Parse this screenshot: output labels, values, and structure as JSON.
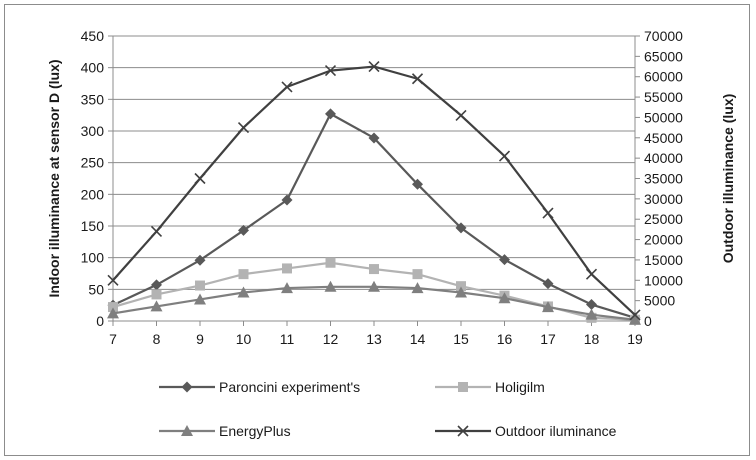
{
  "chart_data": {
    "type": "line",
    "x": [
      7,
      8,
      9,
      10,
      11,
      12,
      13,
      14,
      15,
      16,
      17,
      18,
      19
    ],
    "xlim": [
      7,
      19
    ],
    "ylabel": "Indoor illuminance at sensor D (lux)",
    "ylim": [
      0,
      450
    ],
    "yticks": [
      0,
      50,
      100,
      150,
      200,
      250,
      300,
      350,
      400,
      450
    ],
    "y2label": "Outdoor illuminance (lux)",
    "y2lim": [
      0,
      70000
    ],
    "y2ticks": [
      0,
      5000,
      10000,
      15000,
      20000,
      25000,
      30000,
      35000,
      40000,
      45000,
      50000,
      55000,
      60000,
      65000,
      70000
    ],
    "grid": true,
    "legend_position": "bottom",
    "series": [
      {
        "name": "Paroncini experiment's",
        "axis": "left",
        "marker": "diamond",
        "color": "#595959",
        "values": [
          25,
          57,
          96,
          143,
          191,
          327,
          289,
          216,
          147,
          97,
          59,
          26,
          5
        ]
      },
      {
        "name": "Holigilm",
        "axis": "left",
        "marker": "square",
        "color": "#b3b3b3",
        "values": [
          22,
          42,
          56,
          74,
          83,
          92,
          82,
          74,
          55,
          40,
          23,
          5,
          2
        ]
      },
      {
        "name": "EnergyPlus",
        "axis": "left",
        "marker": "triangle",
        "color": "#7f7f7f",
        "values": [
          12,
          23,
          34,
          45,
          52,
          54,
          54,
          52,
          45,
          36,
          22,
          10,
          2
        ]
      },
      {
        "name": "Outdoor iluminance",
        "axis": "right",
        "marker": "x",
        "color": "#404040",
        "values": [
          10000,
          22000,
          35000,
          47500,
          57500,
          61500,
          62500,
          59500,
          50500,
          40500,
          26500,
          11500,
          1500
        ]
      }
    ]
  }
}
